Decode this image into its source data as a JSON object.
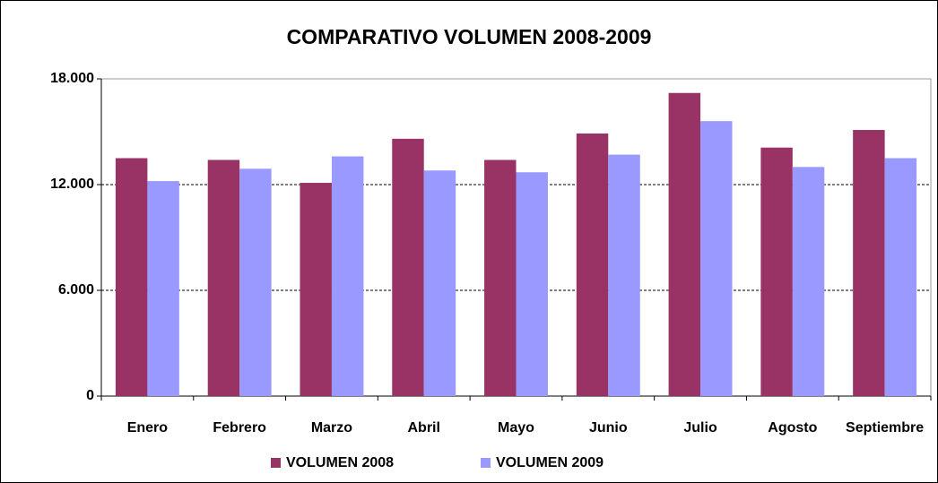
{
  "chart_data": {
    "type": "bar",
    "title": "COMPARATIVO VOLUMEN 2008-2009",
    "categories": [
      "Enero",
      "Febrero",
      "Marzo",
      "Abril",
      "Mayo",
      "Junio",
      "Julio",
      "Agosto",
      "Septiembre"
    ],
    "series": [
      {
        "name": "VOLUMEN 2008",
        "color": "#993366",
        "values": [
          13500,
          13400,
          12100,
          14600,
          13400,
          14900,
          17200,
          14100,
          15100
        ]
      },
      {
        "name": "VOLUMEN 2009",
        "color": "#9999FF",
        "values": [
          12200,
          12900,
          13600,
          12800,
          12700,
          13700,
          15600,
          13000,
          13500
        ]
      }
    ],
    "ylim": [
      0,
      18000
    ],
    "yticks": [
      0,
      {
        "value": 6000,
        "label": "6.000"
      },
      {
        "value": 12000,
        "label": "12.000"
      },
      {
        "value": 18000,
        "label": "18.000"
      }
    ],
    "grid": true,
    "legend": "bottom"
  }
}
